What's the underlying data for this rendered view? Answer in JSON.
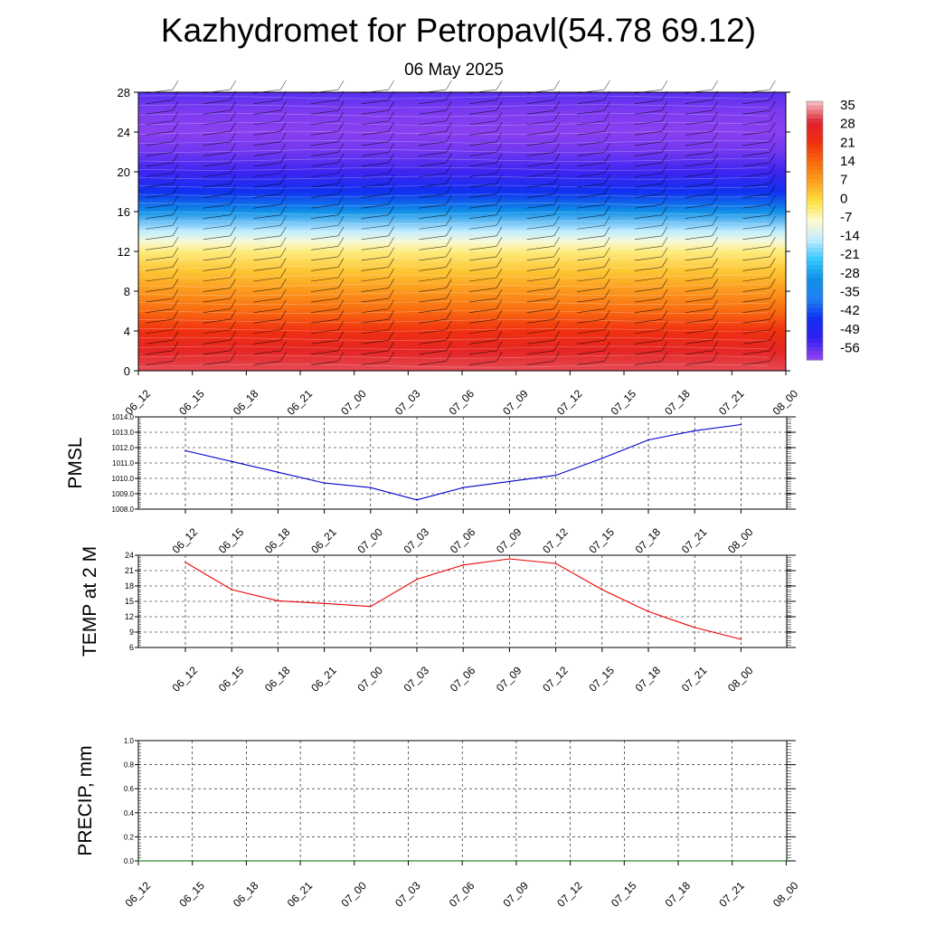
{
  "header": {
    "title": "Kazhydromet for Petropavl(54.78 69.12)",
    "subtitle": "06 May 2025"
  },
  "time_labels": [
    "06_12",
    "06_15",
    "06_18",
    "06_21",
    "07_00",
    "07_03",
    "07_06",
    "07_09",
    "07_12",
    "07_15",
    "07_18",
    "07_21",
    "08_00"
  ],
  "colorbar": {
    "labels": [
      "35",
      "28",
      "21",
      "14",
      "7",
      "0",
      "-7",
      "-14",
      "-21",
      "-28",
      "-35",
      "-42",
      "-49",
      "-56"
    ],
    "colors": [
      "#f2b3b8",
      "#e0202c",
      "#f03010",
      "#f86a10",
      "#fca020",
      "#fde040",
      "#fffbd0",
      "#c0ecff",
      "#30c8ff",
      "#1090e8",
      "#2080f0",
      "#1030f0",
      "#3020f0",
      "#8a40f0"
    ]
  },
  "chart_data": [
    {
      "type": "heatmap",
      "name_on_chart": "",
      "description_note": "",
      "xlabel": "",
      "ylabel": "",
      "y_ticks": [
        0,
        4,
        8,
        12,
        16,
        20,
        24,
        28
      ],
      "ylim": [
        0,
        28
      ],
      "x_categories": [
        "06_12",
        "06_15",
        "06_18",
        "06_21",
        "07_00",
        "07_03",
        "07_06",
        "07_09",
        "07_12",
        "07_15",
        "07_18",
        "07_21",
        "08_00"
      ],
      "color_scale": [
        -56,
        35
      ],
      "profile_levels": [
        0,
        2,
        4,
        6,
        8,
        10,
        12,
        13,
        14,
        16,
        18,
        20,
        22,
        24,
        26,
        28
      ],
      "profile_values": [
        30,
        26,
        21,
        14,
        8,
        3,
        -3,
        -8,
        -14,
        -28,
        -42,
        -50,
        -54,
        -56,
        -55,
        -52
      ],
      "wind_barbs": true,
      "grid": false
    },
    {
      "type": "line",
      "ylabel": "PMSL",
      "x": [
        "06_12",
        "06_15",
        "06_18",
        "06_21",
        "07_00",
        "07_03",
        "07_06",
        "07_09",
        "07_12",
        "07_15",
        "07_18",
        "07_21",
        "08_00"
      ],
      "values": [
        1011.8,
        1011.1,
        1010.4,
        1009.7,
        1009.4,
        1008.6,
        1009.4,
        1009.8,
        1010.2,
        1011.3,
        1012.5,
        1013.1,
        1013.5
      ],
      "ylim": [
        1008.0,
        1014.0
      ],
      "yticks": [
        "1008.0",
        "1009.0",
        "1010.0",
        "1011.0",
        "1012.0",
        "1013.0",
        "1014.0"
      ],
      "color": "#0000cc",
      "grid": true
    },
    {
      "type": "line",
      "ylabel": "TEMP at 2 M",
      "x": [
        "06_12",
        "06_15",
        "06_18",
        "06_21",
        "07_00",
        "07_03",
        "07_06",
        "07_09",
        "07_12",
        "07_15",
        "07_18",
        "07_21",
        "08_00"
      ],
      "values": [
        22.6,
        17.3,
        15.1,
        14.6,
        14.0,
        19.3,
        22.1,
        23.3,
        22.4,
        17.3,
        13.0,
        9.9,
        7.6
      ],
      "ylim": [
        6,
        24
      ],
      "yticks": [
        "6",
        "9",
        "12",
        "15",
        "18",
        "21",
        "24"
      ],
      "color": "#ee0000",
      "grid": true
    },
    {
      "type": "line",
      "ylabel": "PRECIP, mm",
      "x": [
        "06_12",
        "06_15",
        "06_18",
        "06_21",
        "07_00",
        "07_03",
        "07_06",
        "07_09",
        "07_12",
        "07_15",
        "07_18",
        "07_21",
        "08_00"
      ],
      "values": [
        0,
        0,
        0,
        0,
        0,
        0,
        0,
        0,
        0,
        0,
        0,
        0,
        0
      ],
      "ylim": [
        0.0,
        1.0
      ],
      "yticks": [
        "0.0",
        "0.2",
        "0.4",
        "0.6",
        "0.8",
        "1.0"
      ],
      "color": "#006600",
      "grid": true
    }
  ]
}
